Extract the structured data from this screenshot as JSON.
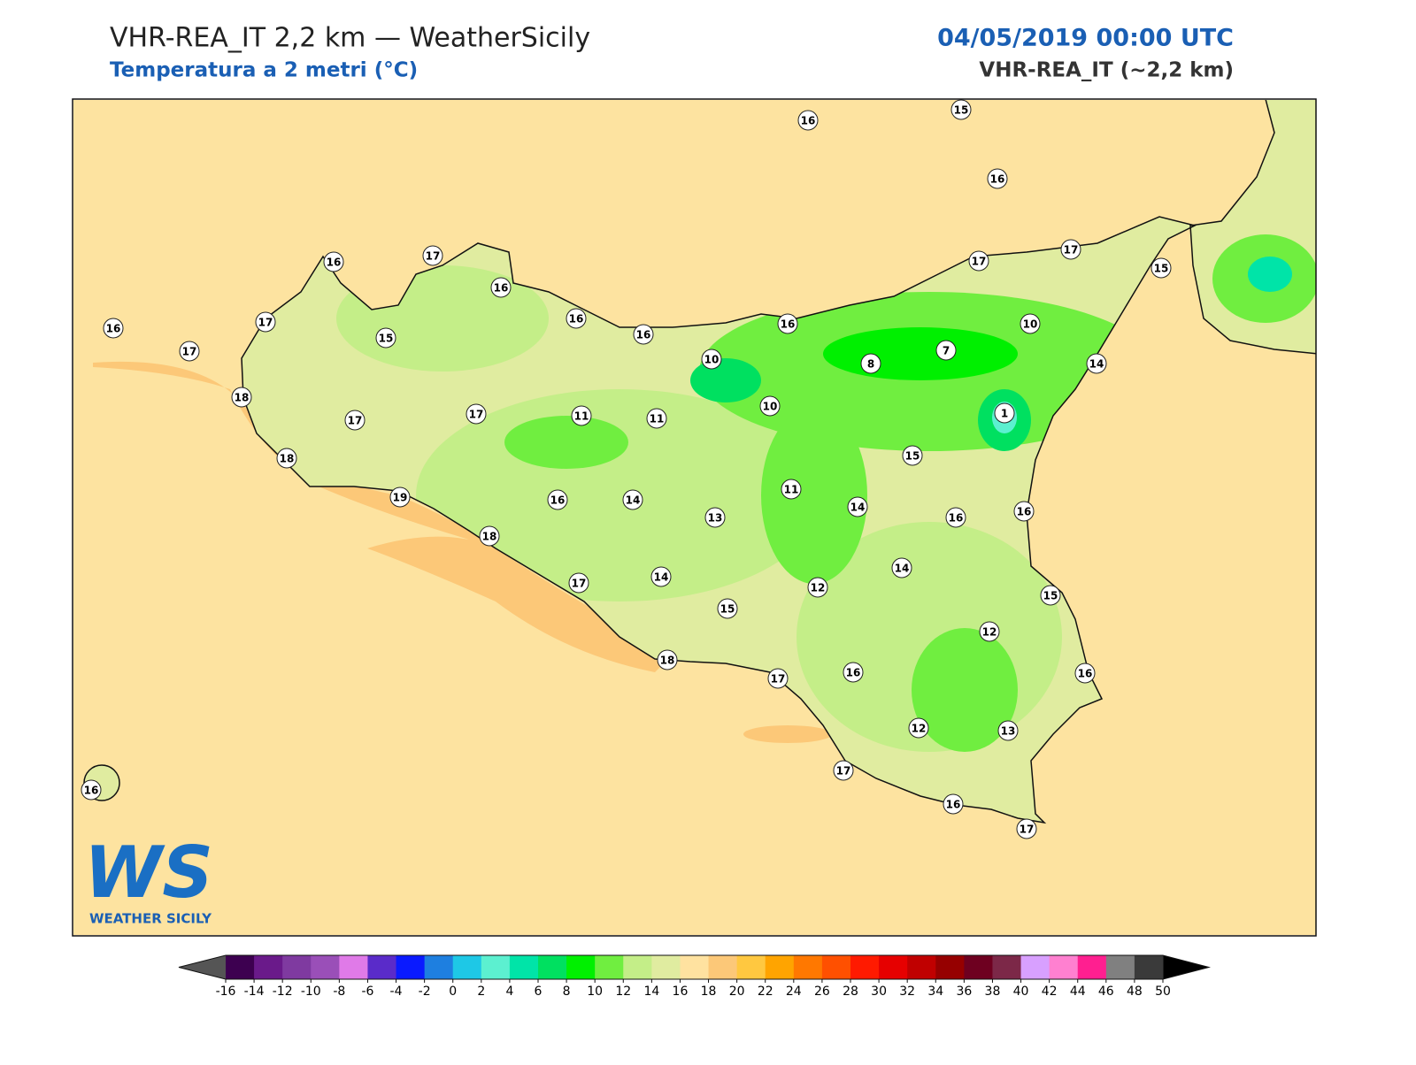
{
  "header": {
    "title": "VHR-REA_IT 2,2 km — WeatherSicily",
    "subtitle": "Temperatura a 2 metri (°C)",
    "date": "04/05/2019 00:00 UTC",
    "model": "VHR-REA_IT (~2,2 km)"
  },
  "logo": {
    "mark": "WS",
    "name": "WEATHER SICILY"
  },
  "stations": [
    16,
    15,
    16,
    16,
    17,
    16,
    16,
    16,
    16,
    17,
    17,
    15,
    16,
    17,
    17,
    15,
    10,
    10,
    8,
    7,
    14,
    18,
    17,
    17,
    11,
    11,
    10,
    1,
    18,
    15,
    11,
    19,
    16,
    14,
    13,
    14,
    16,
    16,
    18,
    14,
    17,
    14,
    12,
    15,
    15,
    12,
    18,
    17,
    16,
    16,
    12,
    13,
    17,
    16,
    17,
    16
  ],
  "colorbar": {
    "ticks": [
      -16,
      -14,
      -12,
      -10,
      -8,
      -6,
      -4,
      -2,
      0,
      2,
      4,
      6,
      8,
      10,
      12,
      14,
      16,
      18,
      20,
      22,
      24,
      26,
      28,
      30,
      32,
      34,
      36,
      38,
      40,
      42,
      44,
      46,
      48,
      50
    ],
    "colors": [
      "#3d0050",
      "#6a1a8a",
      "#7f3aa0",
      "#9a4fb8",
      "#e07ae8",
      "#5a2bc9",
      "#0a1aff",
      "#1e7fe0",
      "#1ec8e6",
      "#5cf0d0",
      "#00e4a8",
      "#00e060",
      "#00f000",
      "#70ee40",
      "#c4ee88",
      "#e0eca0",
      "#ffe2a0",
      "#fcc878",
      "#ffc840",
      "#ffa400",
      "#ff7800",
      "#ff5000",
      "#ff1a00",
      "#e60000",
      "#c00000",
      "#960000",
      "#6e0020",
      "#7c2848",
      "#d8a0ff",
      "#ff80d0",
      "#ff1f90",
      "#808080",
      "#3a3a3a"
    ],
    "under_color": "#555555",
    "over_color": "#000000"
  }
}
